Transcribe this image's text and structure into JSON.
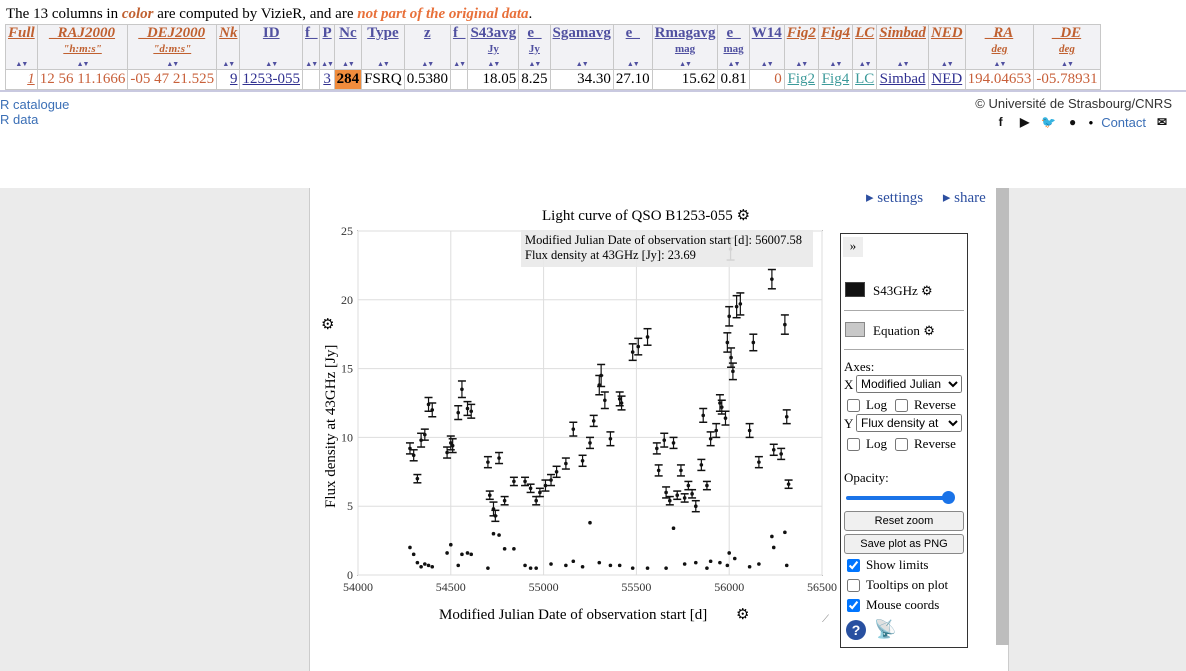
{
  "note": {
    "prefix": "The 13 columns in ",
    "color_word": "color",
    "middle": " are computed by VizieR, and are ",
    "not_part": "not part of the original data",
    "suffix": "."
  },
  "table": {
    "headers": {
      "full": "Full",
      "raj": "_RAJ2000",
      "raj_unit": "\"h:m:s\"",
      "dej": "_DEJ2000",
      "dej_unit": "\"d:m:s\"",
      "nk": "Nk",
      "id": "ID",
      "f1": "f_",
      "p": "P",
      "nc": "Nc",
      "type": "Type",
      "z": "z",
      "f2": "f_",
      "s43": "S43avg",
      "s43_unit": "Jy",
      "es": "e_",
      "es_unit": "Jy",
      "sgam": "Sgamavg",
      "e2": "e_",
      "rmag": "Rmagavg",
      "rmag_unit": "mag",
      "er": "e_",
      "er_unit": "mag",
      "w14": "W14",
      "fig2": "Fig2",
      "fig4": "Fig4",
      "lc": "LC",
      "simbad": "Simbad",
      "ned": "NED",
      "ra": "_RA",
      "ra_unit": "deg",
      "de": "_DE",
      "de_unit": "deg"
    },
    "row": {
      "full": "1",
      "raj": "12 56 11.1666",
      "dej": "-05 47 21.525",
      "nk": "9",
      "id": "1253-055",
      "f1": "",
      "p": "3",
      "nc": "284",
      "type": "FSRQ",
      "z": "0.5380",
      "f2": "",
      "s43": "18.05",
      "es": "8.25",
      "sgam": "34.30",
      "e2": "27.10",
      "rmag": "15.62",
      "er": "0.81",
      "w14": "0",
      "fig2": "Fig2",
      "fig4": "Fig4",
      "lc": "LC",
      "simbad": "Simbad",
      "ned": "NED",
      "ra": "194.04653",
      "de": "-05.78931"
    }
  },
  "footer": {
    "link1": "R catalogue",
    "link2": "R data",
    "copyright": "© Université de Strasbourg/CNRS",
    "contact": "Contact"
  },
  "plot_panel": {
    "settings": "▸ settings",
    "share": "▸ share",
    "title": "Light curve of QSO B1253-055",
    "tooltip_line1": "Modified Julian Date of observation start [d]: 56007.58",
    "tooltip_line2": "Flux density at 43GHz [Jy]: 23.69",
    "xlabel": "Modified Julian Date of observation start [d]",
    "ylabel": "Flux density at 43GHz [Jy]"
  },
  "side": {
    "collapse": "»",
    "series1": "S43GHz",
    "series2": "Equation",
    "axes": "Axes:",
    "x_label": "X",
    "x_value": "Modified Julian",
    "y_label": "Y",
    "y_value": "Flux density at",
    "log": "Log",
    "reverse": "Reverse",
    "opacity": "Opacity:",
    "reset": "Reset zoom",
    "save": "Save plot as PNG",
    "show_limits": "Show limits",
    "tooltips": "Tooltips on plot",
    "mouse": "Mouse coords",
    "help": "?"
  },
  "chart_data": {
    "type": "scatter",
    "title": "Light curve of QSO B1253-055",
    "xlabel": "Modified Julian Date of observation start [d]",
    "ylabel": "Flux density at 43GHz [Jy]",
    "xlim": [
      54000,
      56500
    ],
    "ylim": [
      0,
      25
    ],
    "xticks": [
      54000,
      54500,
      55000,
      55500,
      56000,
      56500
    ],
    "yticks": [
      0,
      5,
      10,
      15,
      20,
      25
    ],
    "series": [
      {
        "name": "S43GHz",
        "color": "#111111",
        "points": [
          [
            54280,
            9.2,
            0.4
          ],
          [
            54300,
            8.7,
            0.4
          ],
          [
            54320,
            7.0,
            0.3
          ],
          [
            54340,
            9.8,
            0.5
          ],
          [
            54360,
            10.2,
            0.4
          ],
          [
            54380,
            12.4,
            0.5
          ],
          [
            54400,
            12.0,
            0.5
          ],
          [
            54480,
            8.9,
            0.4
          ],
          [
            54500,
            9.6,
            0.5
          ],
          [
            54510,
            9.4,
            0.5
          ],
          [
            54540,
            11.8,
            0.5
          ],
          [
            54560,
            13.5,
            0.6
          ],
          [
            54590,
            12.1,
            0.5
          ],
          [
            54610,
            11.9,
            0.5
          ],
          [
            54700,
            8.2,
            0.4
          ],
          [
            54710,
            5.8,
            0.3
          ],
          [
            54730,
            4.8,
            0.5
          ],
          [
            54740,
            4.3,
            0.4
          ],
          [
            54760,
            8.5,
            0.4
          ],
          [
            54790,
            5.4,
            0.3
          ],
          [
            54840,
            6.8,
            0.3
          ],
          [
            54900,
            6.8,
            0.3
          ],
          [
            54930,
            6.3,
            0.3
          ],
          [
            54960,
            5.4,
            0.3
          ],
          [
            54980,
            6.0,
            0.3
          ],
          [
            55010,
            6.5,
            0.4
          ],
          [
            55040,
            6.9,
            0.4
          ],
          [
            55070,
            7.5,
            0.4
          ],
          [
            55120,
            8.1,
            0.4
          ],
          [
            55160,
            10.6,
            0.5
          ],
          [
            55210,
            8.3,
            0.4
          ],
          [
            55250,
            9.6,
            0.4
          ],
          [
            55270,
            11.2,
            0.4
          ],
          [
            55300,
            13.8,
            0.7
          ],
          [
            55310,
            14.5,
            0.8
          ],
          [
            55330,
            12.7,
            0.6
          ],
          [
            55360,
            9.9,
            0.5
          ],
          [
            55410,
            12.8,
            0.5
          ],
          [
            55420,
            12.5,
            0.5
          ],
          [
            55480,
            16.2,
            0.6
          ],
          [
            55510,
            16.6,
            0.6
          ],
          [
            55560,
            17.3,
            0.6
          ],
          [
            55610,
            9.2,
            0.4
          ],
          [
            55620,
            7.6,
            0.4
          ],
          [
            55650,
            9.8,
            0.5
          ],
          [
            55660,
            6.0,
            0.4
          ],
          [
            55680,
            5.4,
            0.3
          ],
          [
            55700,
            9.6,
            0.4
          ],
          [
            55720,
            5.8,
            0.3
          ],
          [
            55740,
            7.6,
            0.4
          ],
          [
            55760,
            5.6,
            0.3
          ],
          [
            55780,
            6.5,
            0.3
          ],
          [
            55800,
            5.9,
            0.3
          ],
          [
            55820,
            5.0,
            0.4
          ],
          [
            55850,
            8.0,
            0.4
          ],
          [
            55860,
            11.6,
            0.5
          ],
          [
            55880,
            6.5,
            0.3
          ],
          [
            55900,
            9.9,
            0.5
          ],
          [
            55930,
            10.5,
            0.5
          ],
          [
            55950,
            12.5,
            0.6
          ],
          [
            55960,
            12.2,
            0.5
          ],
          [
            55980,
            11.4,
            0.5
          ],
          [
            55990,
            16.9,
            0.7
          ],
          [
            56000,
            18.8,
            0.7
          ],
          [
            56007.58,
            23.69,
            0.8
          ],
          [
            56010,
            15.8,
            0.7
          ],
          [
            56020,
            14.8,
            0.6
          ],
          [
            56040,
            19.5,
            0.8
          ],
          [
            56060,
            19.7,
            0.8
          ],
          [
            56110,
            10.5,
            0.5
          ],
          [
            56130,
            16.9,
            0.6
          ],
          [
            56160,
            8.2,
            0.4
          ],
          [
            56230,
            21.5,
            0.7
          ],
          [
            56240,
            9.1,
            0.4
          ],
          [
            56280,
            8.8,
            0.4
          ],
          [
            56300,
            18.2,
            0.7
          ],
          [
            56310,
            11.5,
            0.5
          ],
          [
            56320,
            6.6,
            0.3
          ]
        ]
      },
      {
        "name": "Equation",
        "color": "#bbbbbb",
        "points": [
          [
            54280,
            2.0
          ],
          [
            54300,
            1.5
          ],
          [
            54320,
            0.9
          ],
          [
            54340,
            0.6
          ],
          [
            54360,
            0.8
          ],
          [
            54380,
            0.7
          ],
          [
            54400,
            0.6
          ],
          [
            54480,
            1.6
          ],
          [
            54500,
            2.2
          ],
          [
            54540,
            0.7
          ],
          [
            54560,
            1.5
          ],
          [
            54590,
            1.6
          ],
          [
            54610,
            1.5
          ],
          [
            54700,
            0.5
          ],
          [
            54730,
            3.0
          ],
          [
            54760,
            2.9
          ],
          [
            54790,
            1.9
          ],
          [
            54840,
            1.9
          ],
          [
            54900,
            0.7
          ],
          [
            54930,
            0.5
          ],
          [
            54960,
            0.5
          ],
          [
            55040,
            0.8
          ],
          [
            55120,
            0.7
          ],
          [
            55160,
            1.0
          ],
          [
            55210,
            0.6
          ],
          [
            55250,
            3.8
          ],
          [
            55300,
            0.9
          ],
          [
            55360,
            0.7
          ],
          [
            55410,
            0.7
          ],
          [
            55480,
            0.5
          ],
          [
            55560,
            0.5
          ],
          [
            55660,
            0.5
          ],
          [
            55700,
            3.4
          ],
          [
            55760,
            0.8
          ],
          [
            55820,
            0.9
          ],
          [
            55880,
            0.5
          ],
          [
            55900,
            1.0
          ],
          [
            55950,
            0.9
          ],
          [
            55990,
            0.7
          ],
          [
            56000,
            1.6
          ],
          [
            56030,
            1.2
          ],
          [
            56110,
            0.6
          ],
          [
            56160,
            0.8
          ],
          [
            56230,
            2.8
          ],
          [
            56240,
            2.0
          ],
          [
            56300,
            3.1
          ],
          [
            56310,
            0.7
          ]
        ]
      }
    ],
    "legend": "right",
    "grid": true
  }
}
